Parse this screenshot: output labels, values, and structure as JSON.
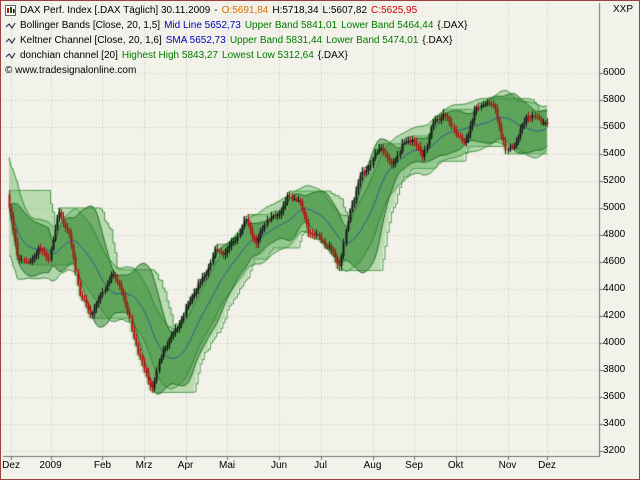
{
  "window": {
    "right_label": "XXP"
  },
  "header": {
    "line1": {
      "title": "DAX Perf. Index [.DAX  Täglich]  30.11.2009",
      "sep": "-",
      "open": "O:5691,84",
      "high": "H:5718,34",
      "low": "L:5607,82",
      "close": "C:5625,95"
    },
    "line2": {
      "name": "Bollinger Bands [Close, 20, 1,5]",
      "mid": "Mid Line 5652,73",
      "upper": "Upper Band 5841,01",
      "lower": "Lower Band 5464,44",
      "suffix": "{.DAX}"
    },
    "line3": {
      "name": "Keltner Channel [Close, 20, 1,6]",
      "mid": "SMA 5652,73",
      "upper": "Upper Band 5831,44",
      "lower": "Lower Band 5474,01",
      "suffix": "{.DAX}"
    },
    "line4": {
      "name": "donchian channel [20]",
      "high": "Highest High 5843,27",
      "low": "Lowest Low 5312,64",
      "suffix": "{.DAX}"
    },
    "copyright": "© www.tradesignalonline.com"
  },
  "chart_data": {
    "type": "candlestick",
    "symbol": ".DAX",
    "title": "DAX Perf. Index",
    "timeframe": "Täglich",
    "last_date": "30.11.2009",
    "last_bar": {
      "open": 5691.84,
      "high": 5718.34,
      "low": 5607.82,
      "close": 5625.95
    },
    "indicators": [
      {
        "name": "Bollinger Bands",
        "params": [
          "Close",
          20,
          1.5
        ],
        "mid_line": 5652.73,
        "upper_band": 5841.01,
        "lower_band": 5464.44
      },
      {
        "name": "Keltner Channel",
        "params": [
          "Close",
          20,
          1.6
        ],
        "sma": 5652.73,
        "upper_band": 5831.44,
        "lower_band": 5474.01
      },
      {
        "name": "donchian channel",
        "params": [
          20
        ],
        "highest_high": 5843.27,
        "lowest_low": 5312.64
      }
    ],
    "y_axis": {
      "min": 3200,
      "max": 6000,
      "step": 200,
      "ticks": [
        6000,
        5800,
        5600,
        5400,
        5200,
        5000,
        4800,
        4600,
        4400,
        4200,
        4000,
        3800,
        3600,
        3400,
        3200
      ]
    },
    "x_axis": {
      "ticks": [
        {
          "label": "Dez",
          "day": 1
        },
        {
          "label": "2009",
          "day": 20
        },
        {
          "label": "Feb",
          "day": 45
        },
        {
          "label": "Mrz",
          "day": 65
        },
        {
          "label": "Apr",
          "day": 85
        },
        {
          "label": "Mai",
          "day": 105
        },
        {
          "label": "Jun",
          "day": 130
        },
        {
          "label": "Jul",
          "day": 150
        },
        {
          "label": "Aug",
          "day": 175
        },
        {
          "label": "Sep",
          "day": 195
        },
        {
          "label": "Okt",
          "day": 215
        },
        {
          "label": "Nov",
          "day": 240
        },
        {
          "label": "Dez",
          "day": 259
        }
      ]
    },
    "weekly_closes": [
      5100,
      4650,
      4580,
      4700,
      4630,
      4973,
      4800,
      4366,
      4216,
      4338,
      4510,
      4413,
      4100,
      3843,
      3666,
      3953,
      4069,
      4203,
      4385,
      4491,
      4677,
      4674,
      4770,
      4913,
      4737,
      4918,
      4940,
      5077,
      5069,
      4839,
      4776,
      4708,
      4576,
      4978,
      5229,
      5332,
      5459,
      5309,
      5462,
      5517,
      5384,
      5624,
      5703,
      5581,
      5467,
      5712,
      5786,
      5740,
      5414,
      5488,
      5686,
      5663,
      5626
    ]
  },
  "colors": {
    "background": "#f2f2ea",
    "grid": "#c6c6ba",
    "axis": "#707070",
    "text": "#000000",
    "open_text": "#d96b00",
    "close_text": "#cc0000",
    "blue_text": "#0000bb",
    "green_text": "#007a00",
    "candle_up": "#151515",
    "candle_down": "#b01010",
    "donchian_fill": "rgba(120,190,110,0.45)",
    "donchian_line": "#4a9a4a",
    "keltner_fill": "rgba(90,175,90,0.40)",
    "keltner_line": "#3a8f3a",
    "bollinger_fill": "rgba(40,130,40,0.50)",
    "bollinger_line": "#256f25",
    "mid_line": "rgba(0,0,200,0.45)",
    "frame": "#9a4040"
  }
}
